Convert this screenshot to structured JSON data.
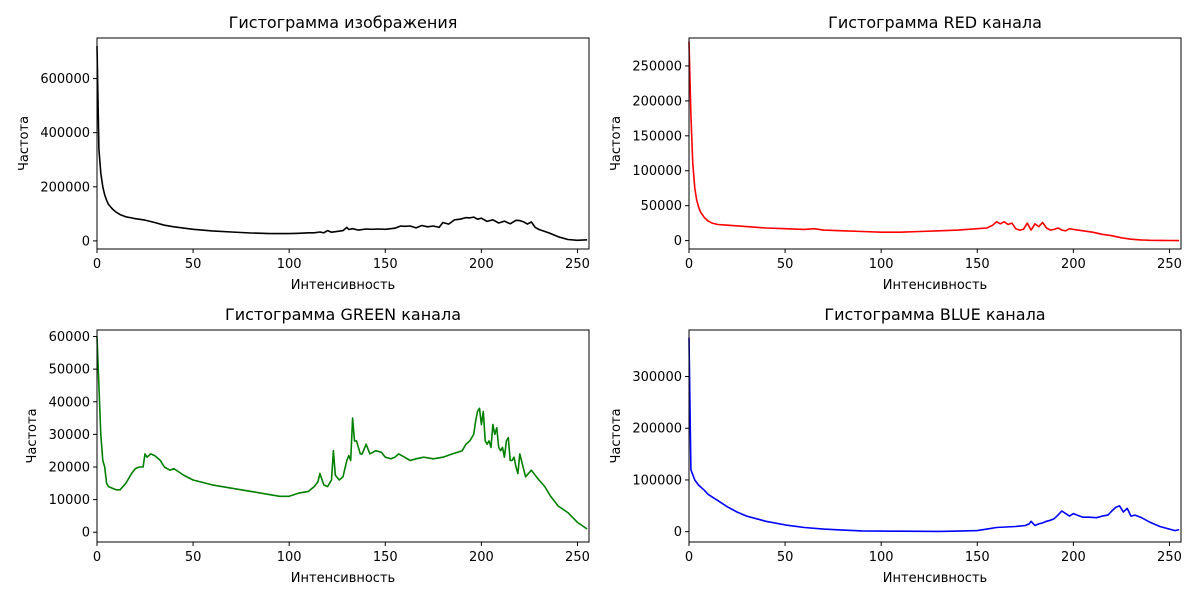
{
  "chart_data": [
    {
      "type": "line",
      "title": "Гистограмма изображения",
      "xlabel": "Интенсивность",
      "ylabel": "Частота",
      "color": "#000000",
      "xlim": [
        0,
        256
      ],
      "ylim": [
        -30000,
        750000
      ],
      "xticks": [
        0,
        50,
        100,
        150,
        200,
        250
      ],
      "yticks": [
        0,
        200000,
        400000,
        600000
      ],
      "grid": false,
      "series": [
        {
          "x": [
            0,
            1,
            2,
            3,
            4,
            5,
            6,
            8,
            10,
            12,
            15,
            18,
            20,
            25,
            30,
            35,
            40,
            50,
            60,
            70,
            80,
            90,
            100,
            105,
            110,
            113,
            116,
            118,
            120,
            122,
            125,
            128,
            130,
            131,
            133,
            136,
            140,
            143,
            146,
            150,
            155,
            158,
            160,
            163,
            166,
            169,
            172,
            175,
            178,
            180,
            183,
            186,
            189,
            192,
            194,
            196,
            198,
            200,
            203,
            206,
            209,
            212,
            215,
            218,
            220,
            222,
            224,
            226,
            228,
            230,
            235,
            240,
            245,
            250,
            255
          ],
          "y": [
            720000,
            340000,
            250000,
            200000,
            170000,
            150000,
            135000,
            118000,
            106000,
            97000,
            89000,
            85000,
            82000,
            77000,
            68000,
            58000,
            52000,
            43000,
            37000,
            33000,
            29000,
            27000,
            27000,
            28000,
            30000,
            30000,
            33000,
            30000,
            38000,
            32000,
            35000,
            38000,
            50000,
            42000,
            45000,
            40000,
            44000,
            43000,
            44000,
            43000,
            47000,
            55000,
            54000,
            55000,
            48000,
            57000,
            52000,
            55000,
            50000,
            68000,
            62000,
            78000,
            80000,
            86000,
            85000,
            88000,
            80000,
            84000,
            72000,
            78000,
            66000,
            73000,
            63000,
            76000,
            75000,
            70000,
            62000,
            70000,
            50000,
            42000,
            30000,
            15000,
            5000,
            2000,
            4000
          ]
        }
      ]
    },
    {
      "type": "line",
      "title": "Гистограмма RED канала",
      "xlabel": "Интенсивность",
      "ylabel": "Частота",
      "color": "#ff0000",
      "xlim": [
        0,
        256
      ],
      "ylim": [
        -12000,
        290000
      ],
      "xticks": [
        0,
        50,
        100,
        150,
        200,
        250
      ],
      "yticks": [
        0,
        50000,
        100000,
        150000,
        200000,
        250000
      ],
      "grid": false,
      "series": [
        {
          "x": [
            0,
            1,
            2,
            3,
            4,
            5,
            6,
            8,
            10,
            12,
            15,
            20,
            30,
            40,
            50,
            60,
            65,
            70,
            80,
            90,
            100,
            110,
            120,
            130,
            140,
            150,
            155,
            158,
            160,
            162,
            164,
            166,
            168,
            170,
            172,
            174,
            176,
            178,
            180,
            182,
            184,
            186,
            188,
            190,
            192,
            194,
            196,
            198,
            200,
            205,
            210,
            215,
            220,
            225,
            230,
            235,
            240,
            245,
            250,
            255
          ],
          "y": [
            285000,
            180000,
            110000,
            75000,
            58000,
            48000,
            41000,
            33000,
            28000,
            25000,
            23000,
            22000,
            20000,
            18000,
            17000,
            16000,
            17000,
            15000,
            14000,
            13000,
            12000,
            12000,
            13000,
            14000,
            15000,
            17000,
            18000,
            22000,
            27000,
            24000,
            27000,
            23000,
            25000,
            17000,
            15000,
            16000,
            25000,
            15000,
            24000,
            20000,
            26000,
            18000,
            15000,
            16000,
            18000,
            15000,
            14000,
            17000,
            16000,
            14000,
            12000,
            9000,
            7000,
            4000,
            2000,
            1000,
            500,
            300,
            100,
            50
          ]
        }
      ]
    },
    {
      "type": "line",
      "title": "Гистограмма GREEN канала",
      "xlabel": "Интенсивность",
      "ylabel": "Частота",
      "color": "#008000",
      "xlim": [
        0,
        256
      ],
      "ylim": [
        -3000,
        62000
      ],
      "xticks": [
        0,
        50,
        100,
        150,
        200,
        250
      ],
      "yticks": [
        0,
        10000,
        20000,
        30000,
        40000,
        50000,
        60000
      ],
      "grid": false,
      "series": [
        {
          "x": [
            0,
            1,
            2,
            3,
            4,
            5,
            6,
            8,
            10,
            12,
            15,
            18,
            20,
            22,
            24,
            25,
            26,
            28,
            30,
            33,
            35,
            38,
            40,
            45,
            50,
            60,
            70,
            80,
            90,
            95,
            100,
            105,
            110,
            113,
            115,
            116,
            118,
            120,
            121,
            122,
            123,
            124,
            126,
            128,
            130,
            131,
            132,
            133,
            134,
            135,
            137,
            138,
            140,
            142,
            145,
            148,
            150,
            153,
            155,
            157,
            160,
            163,
            166,
            170,
            175,
            180,
            185,
            190,
            192,
            194,
            196,
            197,
            198,
            199,
            200,
            201,
            202,
            203,
            204,
            205,
            206,
            207,
            208,
            209,
            210,
            211,
            212,
            213,
            214,
            215,
            216,
            217,
            218,
            219,
            220,
            223,
            226,
            230,
            233,
            236,
            240,
            245,
            250,
            255
          ],
          "y": [
            60000,
            45000,
            30000,
            22000,
            20000,
            15000,
            14000,
            13500,
            13000,
            13000,
            15000,
            18000,
            19500,
            20000,
            20000,
            24000,
            23000,
            24000,
            23500,
            22000,
            20000,
            19000,
            19500,
            17500,
            16000,
            14500,
            13500,
            12500,
            11500,
            11000,
            11000,
            12000,
            12500,
            14000,
            15500,
            18000,
            14500,
            14000,
            15000,
            16000,
            25000,
            17500,
            16000,
            17000,
            22000,
            23500,
            22000,
            35000,
            28000,
            28000,
            24000,
            24000,
            27000,
            24000,
            25000,
            24500,
            23000,
            22500,
            23000,
            24000,
            23000,
            22000,
            22500,
            23000,
            22500,
            23000,
            24000,
            25000,
            27000,
            28000,
            30000,
            34000,
            37000,
            38000,
            33000,
            37000,
            28000,
            27000,
            28000,
            26000,
            33000,
            30000,
            32000,
            26000,
            25000,
            26000,
            23000,
            28000,
            29000,
            22000,
            22000,
            23000,
            20000,
            18000,
            24000,
            17000,
            19000,
            16000,
            14000,
            11000,
            8000,
            6000,
            3000,
            1000
          ]
        }
      ]
    },
    {
      "type": "line",
      "title": "Гистограмма BLUE канала",
      "xlabel": "Интенсивность",
      "ylabel": "Частота",
      "color": "#0000ff",
      "xlim": [
        0,
        256
      ],
      "ylim": [
        -20000,
        390000
      ],
      "xticks": [
        0,
        50,
        100,
        150,
        200,
        250
      ],
      "yticks": [
        0,
        100000,
        200000,
        300000
      ],
      "grid": false,
      "series": [
        {
          "x": [
            0,
            1,
            2,
            3,
            5,
            8,
            10,
            15,
            20,
            25,
            30,
            40,
            50,
            60,
            70,
            80,
            90,
            100,
            110,
            120,
            130,
            140,
            150,
            155,
            160,
            165,
            170,
            175,
            177,
            178,
            180,
            182,
            184,
            186,
            188,
            190,
            192,
            194,
            196,
            198,
            200,
            202,
            205,
            208,
            212,
            215,
            218,
            220,
            222,
            224,
            226,
            228,
            230,
            232,
            235,
            240,
            245,
            250,
            253,
            255
          ],
          "y": [
            375000,
            120000,
            110000,
            100000,
            90000,
            80000,
            72000,
            60000,
            48000,
            38000,
            30000,
            20000,
            13000,
            8000,
            5000,
            3000,
            1500,
            1000,
            800,
            600,
            500,
            1000,
            2000,
            5000,
            8000,
            9000,
            10000,
            12000,
            15000,
            20000,
            12000,
            15000,
            17000,
            20000,
            22000,
            25000,
            32000,
            40000,
            35000,
            30000,
            35000,
            32000,
            28000,
            28000,
            27000,
            30000,
            32000,
            40000,
            47000,
            50000,
            38000,
            45000,
            30000,
            32000,
            28000,
            18000,
            10000,
            5000,
            2000,
            4000
          ]
        }
      ]
    }
  ]
}
